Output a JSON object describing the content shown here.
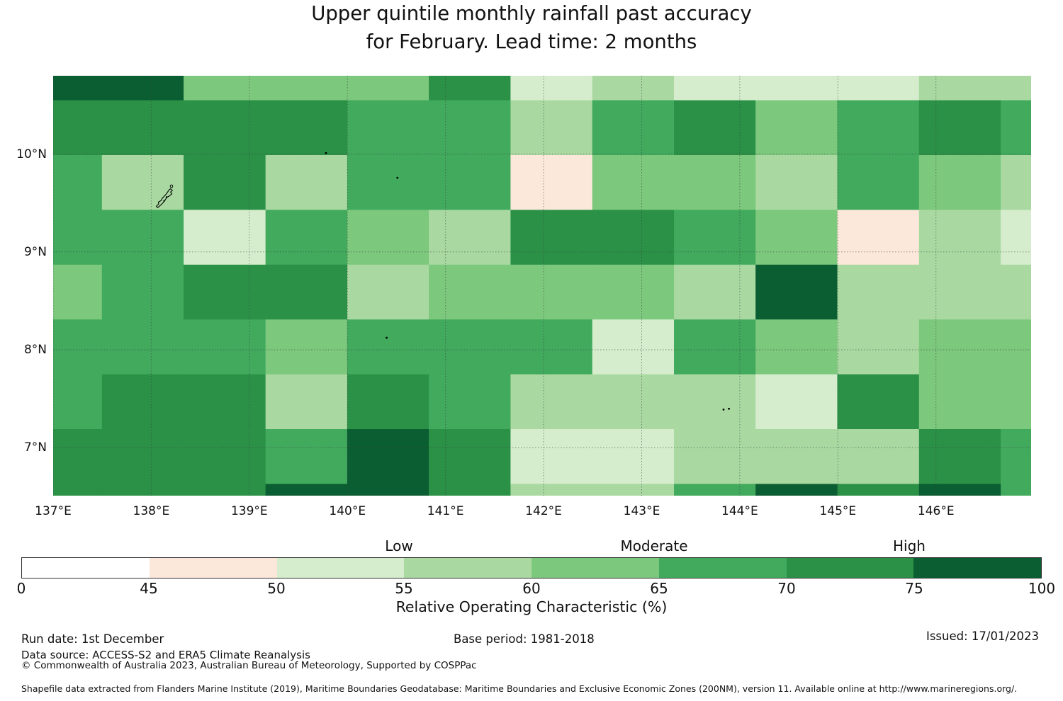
{
  "title": {
    "line1": "Upper quintile monthly rainfall past accuracy",
    "line2": "for February. Lead time: 2 months"
  },
  "palette": {
    "W": "#ffffff",
    "PK": "#fce8da",
    "G1": "#d5edcd",
    "G2": "#a9d9a1",
    "G3": "#7cc87d",
    "G4": "#41aa5d",
    "G5": "#2b9147",
    "G6": "#0b5e31"
  },
  "chart_data": {
    "type": "heatmap",
    "title": "Upper quintile monthly rainfall past accuracy for February. Lead time: 2 months",
    "legend_categories": [
      "Low",
      "Moderate",
      "High"
    ],
    "colorbar_label": "Relative Operating Characteristic (%)",
    "lon_range": [
      137.0,
      146.97
    ],
    "lat_range": [
      6.51,
      10.8
    ],
    "lon_tick_values": [
      137,
      138,
      139,
      140,
      141,
      142,
      143,
      144,
      145,
      146
    ],
    "lon_tick_labels": [
      "137°E",
      "138°E",
      "139°E",
      "140°E",
      "141°E",
      "142°E",
      "143°E",
      "144°E",
      "145°E",
      "146°E"
    ],
    "lat_tick_values": [
      10,
      9,
      8,
      7
    ],
    "lat_tick_labels": [
      "10°N",
      "9°N",
      "8°N",
      "7°N"
    ],
    "col_edges_lon": [
      137.0,
      137.497,
      138.33,
      139.165,
      139.998,
      140.83,
      141.663,
      142.496,
      143.329,
      144.161,
      144.994,
      145.827,
      146.66,
      146.97
    ],
    "row_edges_lat": [
      10.8,
      10.55,
      9.99,
      9.43,
      8.87,
      8.31,
      7.75,
      7.19,
      6.63,
      6.51
    ],
    "bins": [
      {
        "range": "0-45",
        "color_key": "W"
      },
      {
        "range": "45-50",
        "color_key": "PK"
      },
      {
        "range": "50-55",
        "color_key": "G1"
      },
      {
        "range": "55-60",
        "color_key": "G2"
      },
      {
        "range": "60-65",
        "color_key": "G3"
      },
      {
        "range": "65-70",
        "color_key": "G4"
      },
      {
        "range": "70-75",
        "color_key": "G5"
      },
      {
        "range": "75-100",
        "color_key": "G6"
      }
    ],
    "cell_bins": [
      [
        "G6",
        "G6",
        "G3",
        "G3",
        "G3",
        "G5",
        "G1",
        "G2",
        "G1",
        "G1",
        "G1",
        "G2",
        "G2"
      ],
      [
        "G5",
        "G5",
        "G5",
        "G5",
        "G4",
        "G4",
        "G2",
        "G4",
        "G5",
        "G3",
        "G4",
        "G5",
        "G4"
      ],
      [
        "G4",
        "G2",
        "G5",
        "G2",
        "G4",
        "G4",
        "PK",
        "G3",
        "G3",
        "G2",
        "G4",
        "G3",
        "G2"
      ],
      [
        "G4",
        "G4",
        "G1",
        "G4",
        "G3",
        "G2",
        "G5",
        "G5",
        "G4",
        "G3",
        "PK",
        "G2",
        "G1"
      ],
      [
        "G3",
        "G4",
        "G5",
        "G5",
        "G2",
        "G3",
        "G3",
        "G3",
        "G2",
        "G6",
        "G2",
        "G2",
        "G2"
      ],
      [
        "G4",
        "G4",
        "G4",
        "G3",
        "G4",
        "G4",
        "G4",
        "G1",
        "G4",
        "G3",
        "G2",
        "G3",
        "G3"
      ],
      [
        "G4",
        "G5",
        "G5",
        "G2",
        "G5",
        "G4",
        "G2",
        "G2",
        "G2",
        "G1",
        "G5",
        "G3",
        "G3"
      ],
      [
        "G5",
        "G5",
        "G5",
        "G4",
        "G6",
        "G5",
        "G1",
        "G1",
        "G2",
        "G2",
        "G2",
        "G5",
        "G4"
      ],
      [
        "G5",
        "G5",
        "G5",
        "G6",
        "G6",
        "G5",
        "G2",
        "G2",
        "G4",
        "G6",
        "G5",
        "G6",
        "G4"
      ]
    ]
  },
  "islands": {
    "outline_pts_pct": [
      [
        12.0,
        26.9
      ],
      [
        12.2,
        27.3
      ],
      [
        12.0,
        27.7
      ],
      [
        12.15,
        28.1
      ],
      [
        11.9,
        28.6
      ],
      [
        11.6,
        29.0
      ],
      [
        11.45,
        29.6
      ],
      [
        11.25,
        30.2
      ],
      [
        11.0,
        30.8
      ],
      [
        10.7,
        31.4
      ],
      [
        10.55,
        31.1
      ],
      [
        10.8,
        30.5
      ],
      [
        10.75,
        30.1
      ],
      [
        11.05,
        29.7
      ],
      [
        11.15,
        29.2
      ],
      [
        11.35,
        28.7
      ],
      [
        11.55,
        28.2
      ],
      [
        11.7,
        27.7
      ],
      [
        11.85,
        27.2
      ]
    ],
    "ring_pct": [
      12.1,
      26.3
    ],
    "inner_dots_pct": [
      [
        11.6,
        28.9
      ],
      [
        11.35,
        29.8
      ]
    ],
    "specks_pct": [
      [
        27.9,
        18.4
      ],
      [
        35.2,
        24.3
      ],
      [
        34.1,
        62.4
      ],
      [
        68.55,
        79.5
      ],
      [
        69.1,
        79.3
      ]
    ]
  },
  "colorbar": {
    "tick_labels": [
      "0",
      "45",
      "50",
      "55",
      "60",
      "65",
      "70",
      "75",
      "100"
    ],
    "categories": [
      {
        "label": "Low",
        "tick_index": 3
      },
      {
        "label": "Moderate",
        "tick_index": 5
      },
      {
        "label": "High",
        "tick_index": 7
      }
    ],
    "axis_label": "Relative Operating Characteristic (%)"
  },
  "footer": {
    "run_date": "Run date: 1st December",
    "base_period": "Base period: 1981-2018",
    "issued": "Issued: 17/01/2023",
    "data_source": "Data source: ACCESS-S2 and ERA5 Climate Reanalysis",
    "copyright": "© Commonwealth of Australia 2023, Australian Bureau of Meteorology, Supported by COSPPac",
    "shapefile": "Shapefile data extracted from Flanders Marine Institute (2019), Maritime Boundaries Geodatabase: Maritime Boundaries and Exclusive Economic Zones (200NM), version 11. Available online at http://www.marineregions.org/."
  }
}
